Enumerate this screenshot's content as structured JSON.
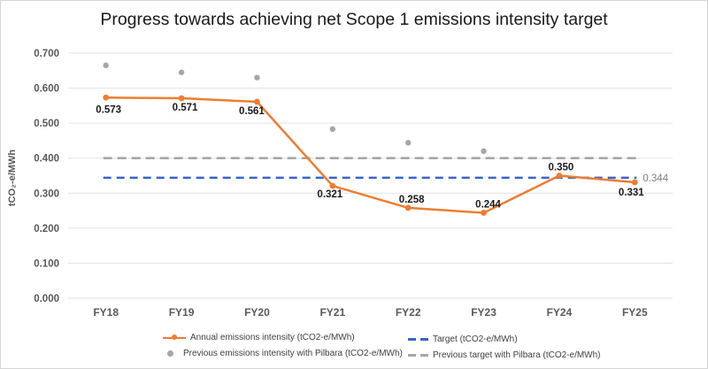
{
  "title": "Progress towards achieving net Scope 1 emissions intensity target",
  "y_axis_title": "tCO₂-e/MWh",
  "colors": {
    "annual": "#ED7D31",
    "target": "#3B63C8",
    "previous": "#A6A6A6",
    "gridline": "#E2E2E2",
    "tick": "#595959",
    "data_label": "#1a1a1a",
    "end_label": "#808080",
    "legend_text": "#3f3f3f"
  },
  "legend": {
    "items": [
      {
        "label": "Annual emissions intensity (tCO2-e/MWh)"
      },
      {
        "label": "Target (tCO2-e/MWh)"
      },
      {
        "label": "Previous emissions intensity with Pilbara (tCO2-e/MWh)"
      },
      {
        "label": "Previous target with Pilbara (tCO2-e/MWh)"
      }
    ]
  },
  "chart_data": {
    "type": "line",
    "title": "Progress towards achieving net Scope 1 emissions intensity target",
    "xlabel": "",
    "ylabel": "tCO2-e/MWh",
    "ylim": [
      0.0,
      0.7
    ],
    "yticks": [
      "0.700",
      "0.600",
      "0.500",
      "0.400",
      "0.300",
      "0.200",
      "0.100",
      "0.000"
    ],
    "categories": [
      "FY18",
      "FY19",
      "FY20",
      "FY21",
      "FY22",
      "FY23",
      "FY24",
      "FY25"
    ],
    "grid": "horizontal",
    "legend_position": "bottom",
    "series": [
      {
        "name": "Annual emissions intensity (tCO2-e/MWh)",
        "type": "line",
        "color_key": "annual",
        "values": [
          0.573,
          0.571,
          0.561,
          0.321,
          0.258,
          0.244,
          0.35,
          0.331
        ],
        "labels": [
          "0.573",
          "0.571",
          "0.561",
          "0.321",
          "0.258",
          "0.244",
          "0.350",
          "0.331"
        ],
        "label_offsets": [
          [
            3,
            17
          ],
          [
            4,
            14
          ],
          [
            -6,
            14
          ],
          [
            -3,
            13
          ],
          [
            4,
            -6
          ],
          [
            5,
            -6
          ],
          [
            2,
            -6
          ],
          [
            -4,
            15
          ]
        ]
      },
      {
        "name": "Previous emissions intensity with Pilbara (tCO2-e/MWh)",
        "type": "scatter",
        "color_key": "previous",
        "values": [
          0.665,
          0.645,
          0.63,
          0.483,
          0.444,
          0.42,
          null,
          null
        ]
      },
      {
        "name": "Target (tCO2-e/MWh)",
        "type": "dashed-line",
        "color_key": "target",
        "value": 0.344,
        "end_label": "0.344"
      },
      {
        "name": "Previous target with Pilbara (tCO2-e/MWh)",
        "type": "dashed-line",
        "color_key": "previous",
        "value": 0.4,
        "end_label": ""
      }
    ]
  }
}
